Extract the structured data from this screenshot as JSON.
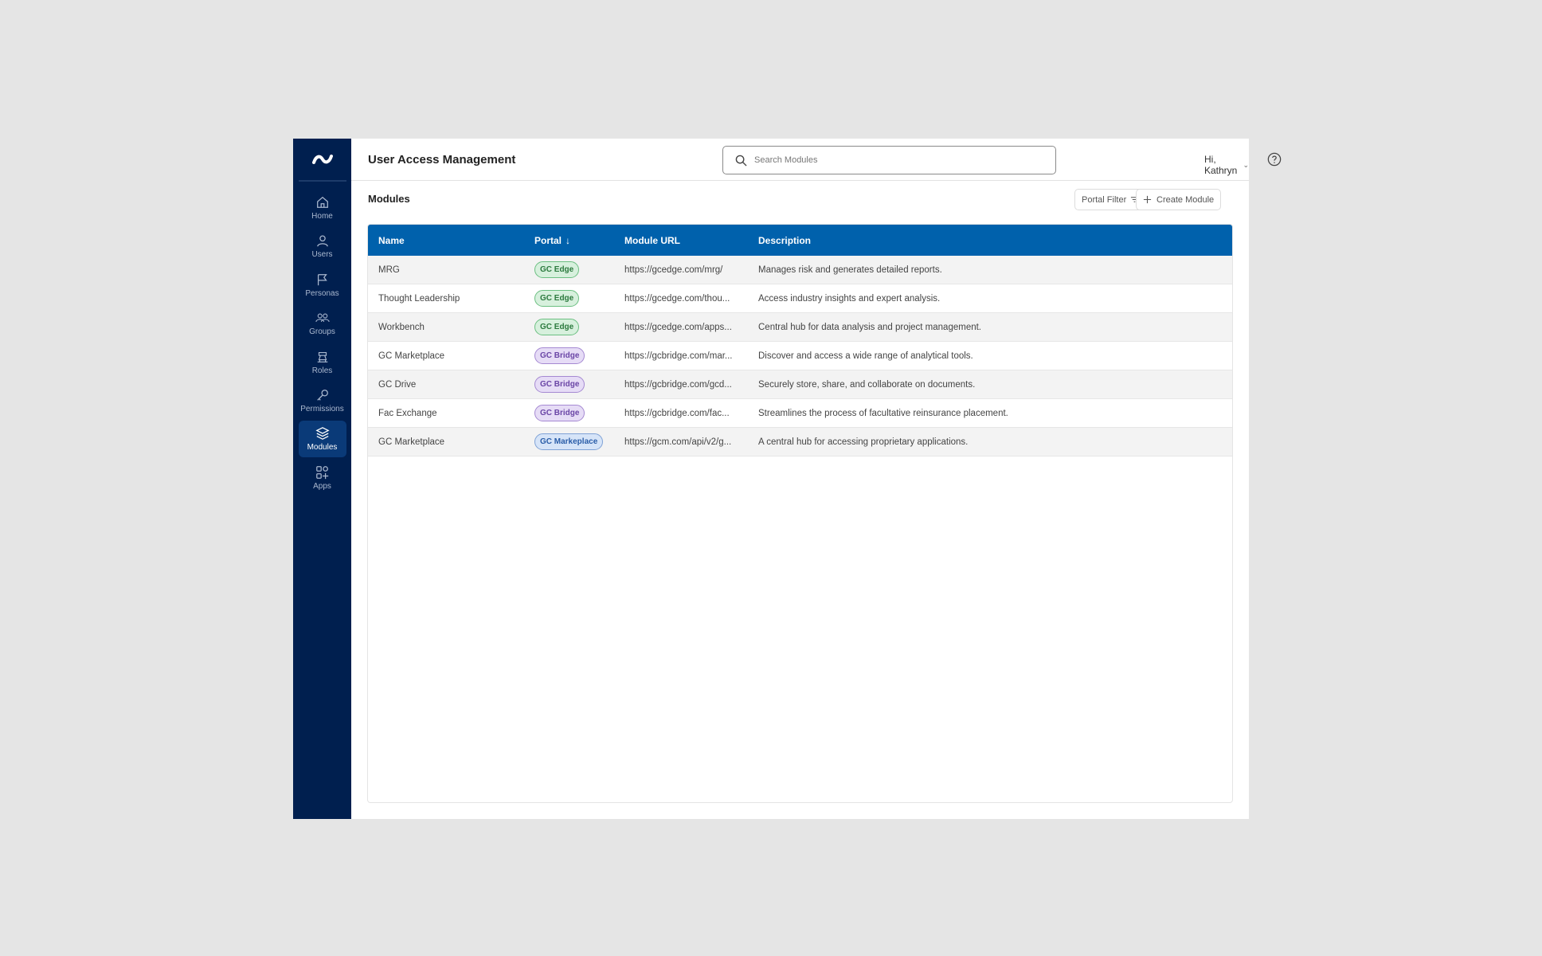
{
  "app": {
    "title": "User Access Management"
  },
  "search": {
    "placeholder": "Search Modules"
  },
  "user": {
    "greeting": "Hi, Kathryn"
  },
  "sidebar": {
    "items": [
      {
        "label": "Home",
        "icon": "home-icon"
      },
      {
        "label": "Users",
        "icon": "user-icon"
      },
      {
        "label": "Personas",
        "icon": "flag-icon"
      },
      {
        "label": "Groups",
        "icon": "group-icon"
      },
      {
        "label": "Roles",
        "icon": "roles-icon"
      },
      {
        "label": "Permissions",
        "icon": "key-icon"
      },
      {
        "label": "Modules",
        "icon": "layers-icon",
        "active": true
      },
      {
        "label": "Apps",
        "icon": "apps-icon"
      }
    ]
  },
  "page": {
    "title": "Modules",
    "filter_label": "Portal Filter",
    "create_label": "Create Module"
  },
  "table": {
    "headers": {
      "name": "Name",
      "portal": "Portal",
      "url": "Module URL",
      "description": "Description"
    },
    "rows": [
      {
        "name": "MRG",
        "portal": "GC Edge",
        "url": "https://gcedge.com/mrg/",
        "description": "Manages risk and generates detailed reports."
      },
      {
        "name": "Thought Leadership",
        "portal": "GC Edge",
        "url": "https://gcedge.com/thou...",
        "description": "Access industry insights and expert analysis."
      },
      {
        "name": "Workbench",
        "portal": "GC Edge",
        "url": "https://gcedge.com/apps...",
        "description": "Central hub for data analysis and project management."
      },
      {
        "name": "GC Marketplace",
        "portal": "GC Bridge",
        "url": "https://gcbridge.com/mar...",
        "description": "Discover and access a wide range of analytical tools."
      },
      {
        "name": "GC Drive",
        "portal": "GC Bridge",
        "url": "https://gcbridge.com/gcd...",
        "description": "Securely store, share, and collaborate on documents."
      },
      {
        "name": "Fac Exchange",
        "portal": "GC Bridge",
        "url": "https://gcbridge.com/fac...",
        "description": "Streamlines the process of facultative reinsurance placement."
      },
      {
        "name": "GC Marketplace",
        "portal": "GC Markeplace",
        "url": "https://gcm.com/api/v2/g...",
        "description": "A central hub for accessing proprietary applications."
      }
    ]
  },
  "colors": {
    "sidebar": "#001f4f",
    "header": "#0061ac",
    "edge": "#2c7a3e",
    "bridge": "#6a45a6",
    "markeplace": "#2a5da8"
  }
}
